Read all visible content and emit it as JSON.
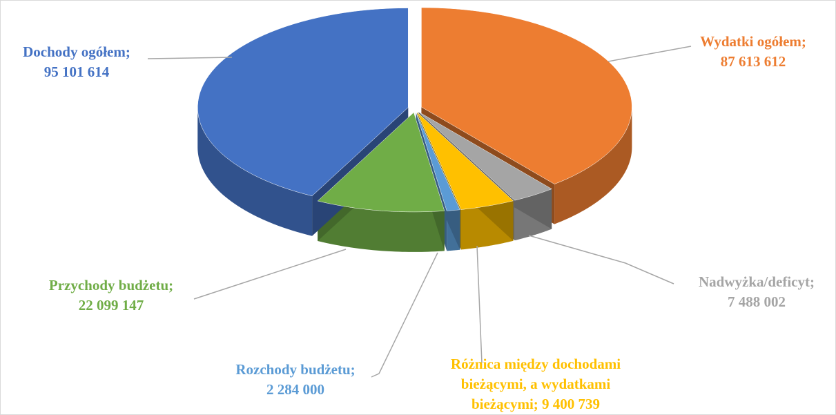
{
  "chart_data": {
    "type": "pie",
    "label_separator": ";",
    "categories": [
      "Wydatki ogółem",
      "Nadwyżka/deficyt",
      "Różnica między dochodami bieżącymi, a wydatkami bieżącymi",
      "Rozchody budżetu",
      "Przychody budżetu",
      "Dochody ogółem"
    ],
    "values": [
      87613612,
      7488002,
      9400739,
      2284000,
      22099147,
      95101614
    ],
    "value_labels": [
      "87 613 612",
      "7 488 002",
      "9 400 739",
      "2 284 000",
      "22 099 147",
      "95 101 614"
    ],
    "colors": [
      "#ed7d31",
      "#a5a5a5",
      "#ffc000",
      "#5b9bd5",
      "#70ad47",
      "#4472c4"
    ]
  }
}
